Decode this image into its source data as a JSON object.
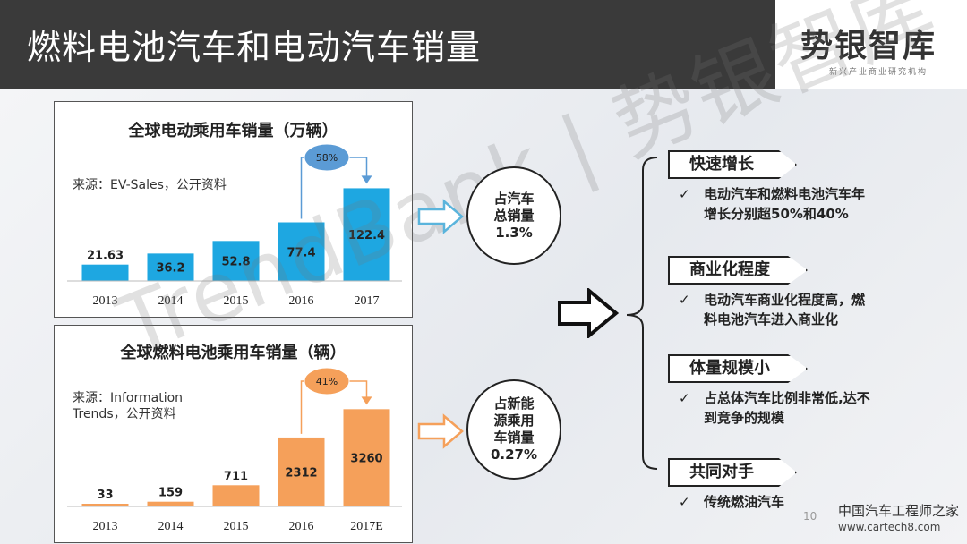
{
  "header": {
    "title": "燃料电池汽车和电动汽车销量"
  },
  "logo": {
    "main": "势银智库",
    "sub": "新兴产业商业研究机构"
  },
  "watermark": "TrendBank | 势银智库",
  "chart_data": [
    {
      "type": "bar",
      "title": "全球电动乘用车销量（万辆）",
      "source": "来源：EV-Sales，公开资料",
      "categories": [
        "2013",
        "2014",
        "2015",
        "2016",
        "2017"
      ],
      "values": [
        21.63,
        36.2,
        52.8,
        77.4,
        122.4
      ],
      "value_labels": [
        "21.63",
        "36.2",
        "52.8",
        "77.4",
        "122.4"
      ],
      "ylim": [
        0,
        130
      ],
      "bar_color": "#1ea7e1",
      "annotation": {
        "text": "58%",
        "from_category": "2016",
        "to_category": "2017",
        "color": "#5b9bd5"
      }
    },
    {
      "type": "bar",
      "title": "全球燃料电池乘用车销量（辆）",
      "source_lines": [
        "来源：Information",
        "Trends，公开资料"
      ],
      "categories": [
        "2013",
        "2014",
        "2015",
        "2016",
        "2017E"
      ],
      "values": [
        33,
        159,
        711,
        2312,
        3260
      ],
      "value_labels": [
        "33",
        "159",
        "711",
        "2312",
        "3260"
      ],
      "ylim": [
        0,
        3600
      ],
      "bar_color": "#f5a05a",
      "annotation": {
        "text": "41%",
        "from_category": "2016",
        "to_category": "2017E",
        "color": "#f5a05a"
      }
    }
  ],
  "middle": {
    "circle1": "占汽车\n总销量\n1.3%",
    "circle2": "占新能\n源乘用\n车销量\n0.27%",
    "arrow1_color": "#5ab4dc",
    "arrow2_color": "#f5a05a"
  },
  "right": {
    "items": [
      {
        "tag": "快速增长",
        "lines": [
          "电动汽车和燃料电池汽车年",
          "增长分别超50%和40%"
        ]
      },
      {
        "tag": "商业化程度",
        "lines": [
          "电动汽车商业化程度高，燃",
          "料电池汽车进入商业化"
        ]
      },
      {
        "tag": "体量规模小",
        "lines": [
          "占总体汽车比例非常低,达不",
          "到竞争的规模"
        ]
      },
      {
        "tag": "共同对手",
        "lines": [
          "传统燃油汽车"
        ]
      }
    ],
    "check_mark": "✓"
  },
  "page_number": "10",
  "footer": {
    "brand": "中国汽车工程师之家",
    "url": "www.cartech8.com"
  }
}
